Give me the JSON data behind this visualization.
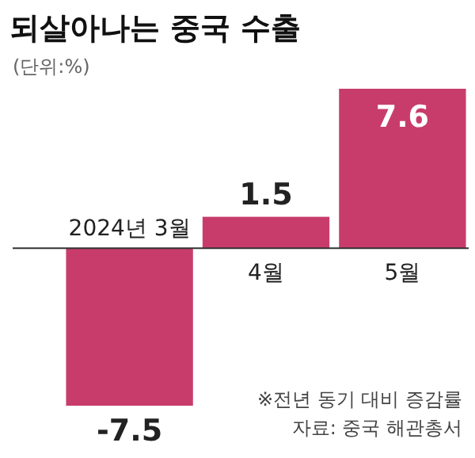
{
  "chart_data": {
    "type": "bar",
    "title": "되살아나는 중국 수출",
    "subtitle": "(단위:%)",
    "categories": [
      "2024년 3월",
      "4월",
      "5월"
    ],
    "values": [
      -7.5,
      1.5,
      7.6
    ],
    "color": "#c83c6c",
    "data_labels": true,
    "annotations": [
      "※전년 동기 대비 증감률",
      "자료: 중국 해관총서"
    ]
  }
}
